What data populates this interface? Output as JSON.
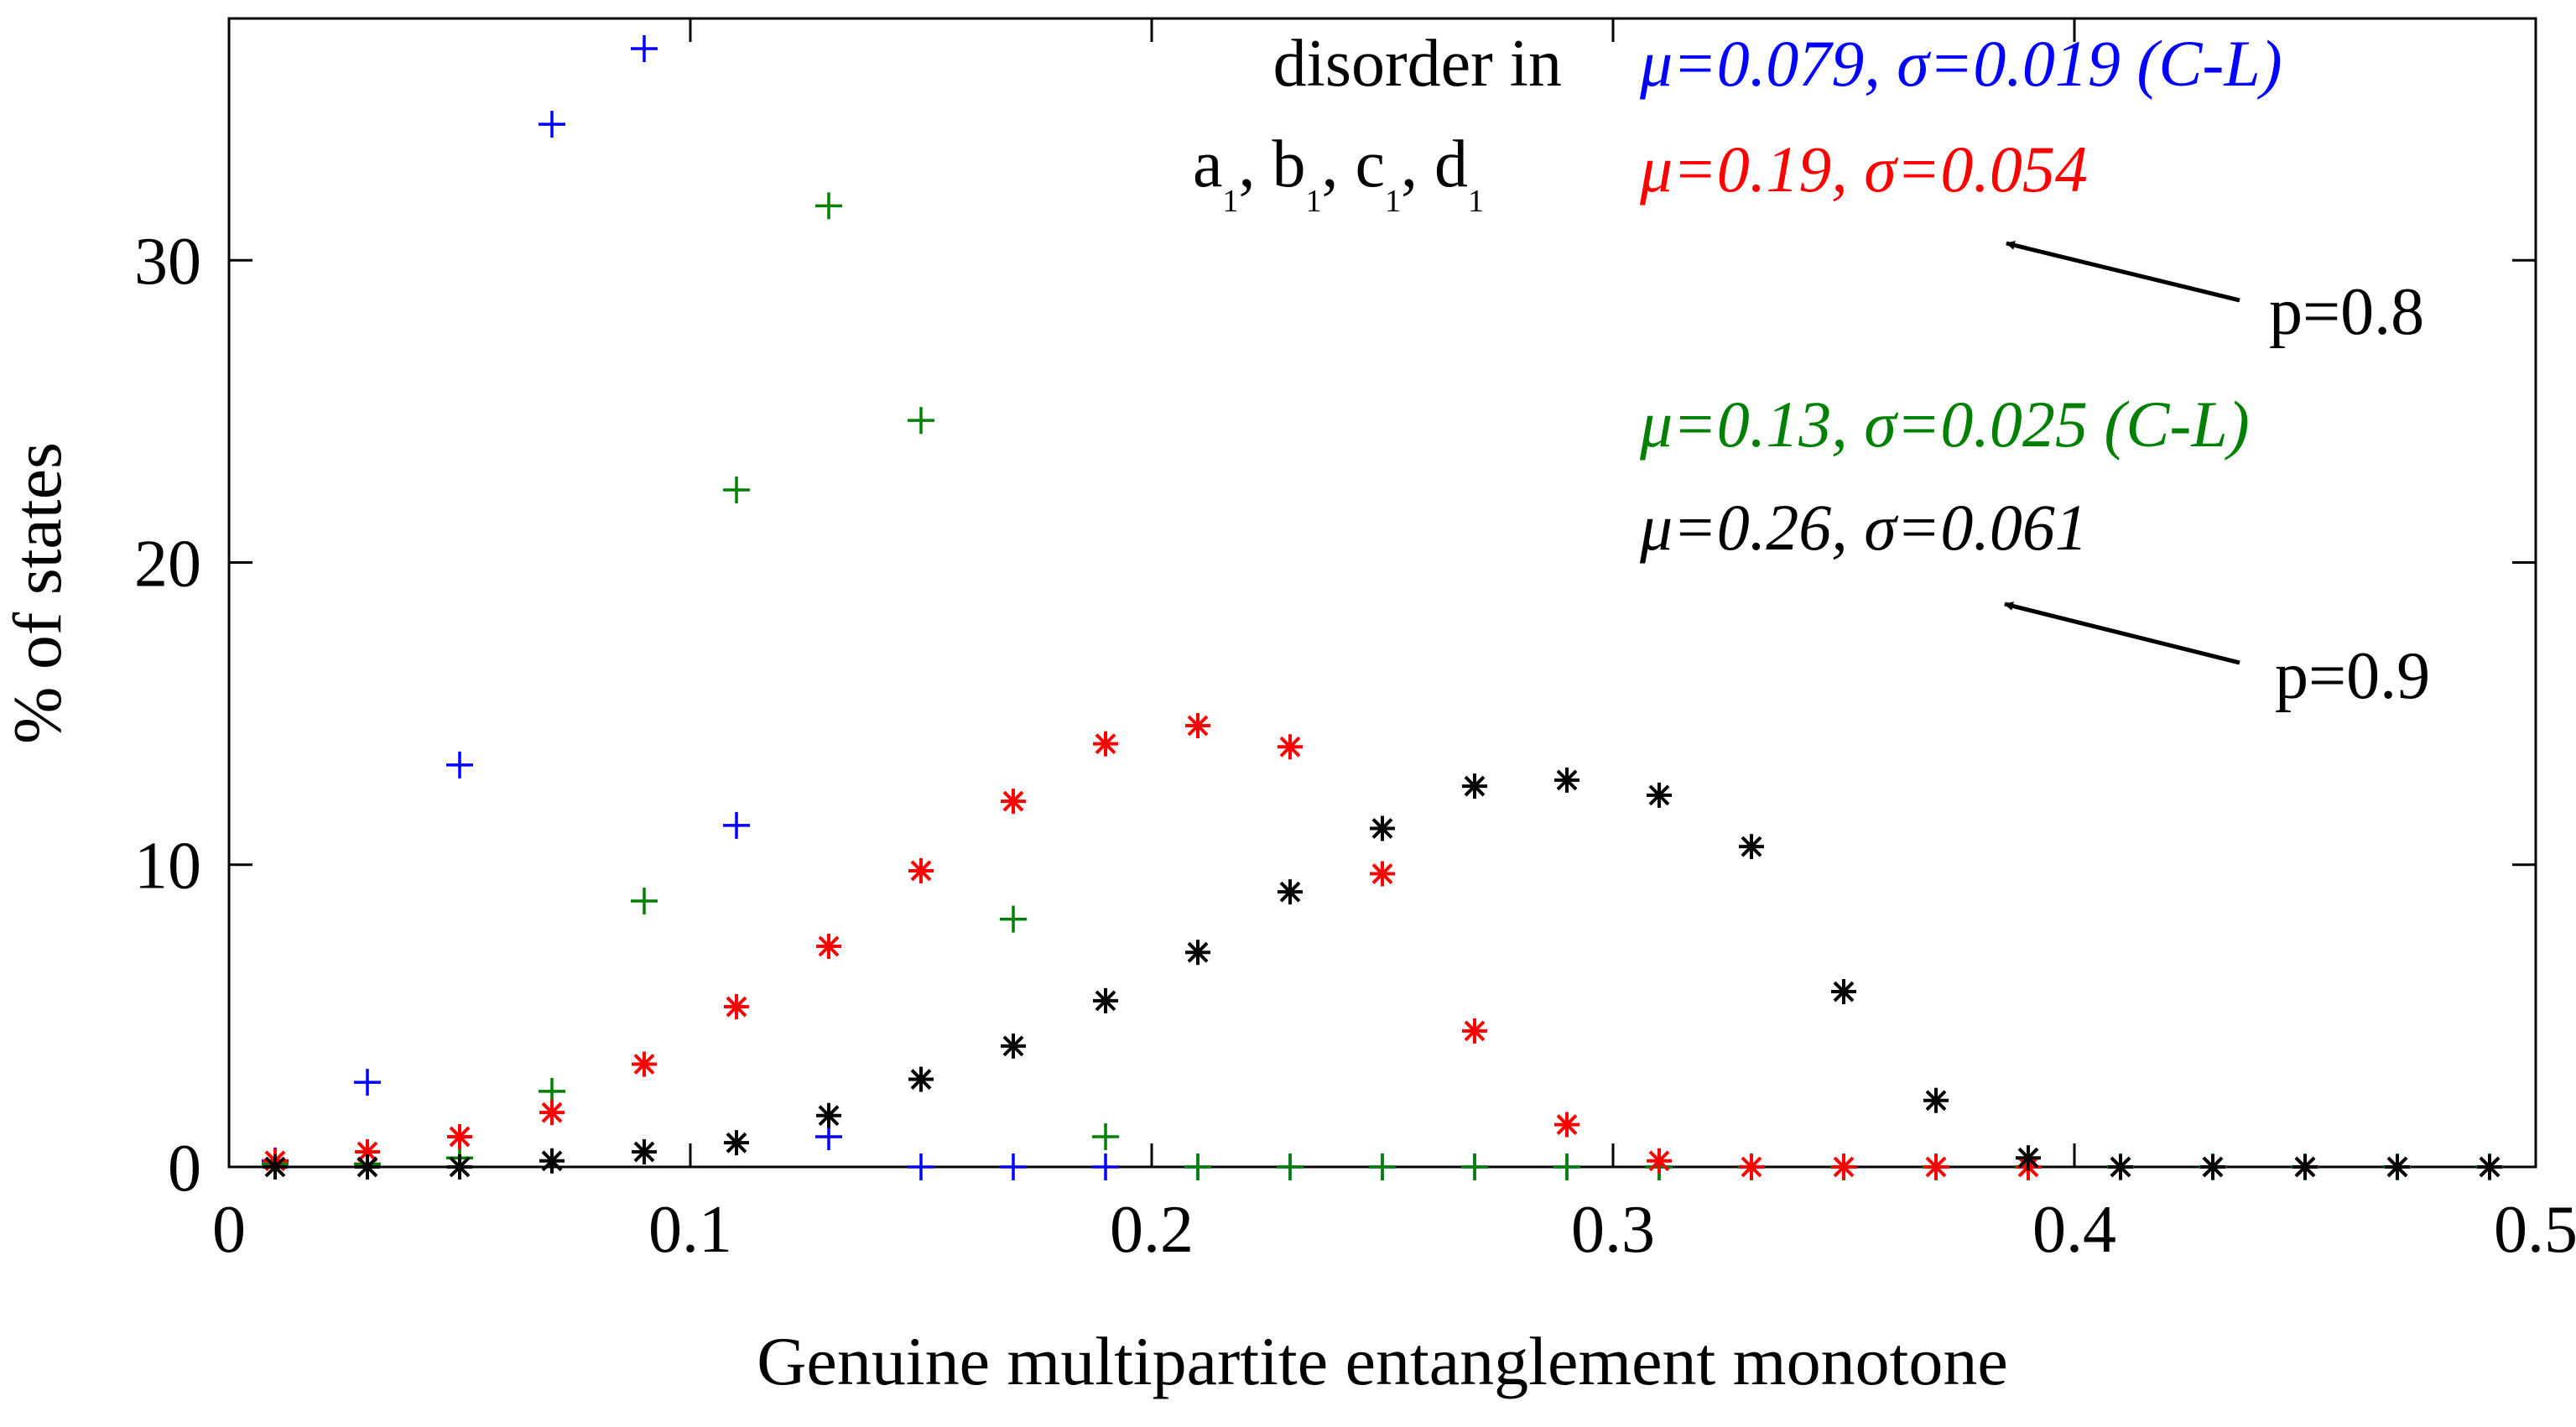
{
  "chart_data": {
    "type": "scatter",
    "title": "",
    "xlabel": "Genuine multipartite entanglement monotone",
    "ylabel": "% of states",
    "xlim": [
      0,
      0.5
    ],
    "ylim": [
      0,
      38
    ],
    "xticks": [
      0,
      0.1,
      0.2,
      0.3,
      0.4,
      0.5
    ],
    "xtick_labels": [
      "0",
      "0.1",
      "0.2",
      "0.3",
      "0.4",
      "0.5"
    ],
    "yticks": [
      0,
      10,
      20,
      30
    ],
    "ytick_labels": [
      "0",
      "10",
      "20",
      "30"
    ],
    "grid": false,
    "x": [
      0.01,
      0.03,
      0.05,
      0.07,
      0.09,
      0.11,
      0.13,
      0.15,
      0.17,
      0.19,
      0.21,
      0.23,
      0.25,
      0.27,
      0.29,
      0.31,
      0.33,
      0.35,
      0.37,
      0.39,
      0.41,
      0.43,
      0.45,
      0.47,
      0.49
    ],
    "series": [
      {
        "name": "blue plus (C-L, p=0.8)",
        "color": "#0000ff",
        "marker": "plus",
        "values": [
          0.2,
          2.8,
          13.3,
          34.5,
          37.0,
          11.3,
          1.0,
          0.0,
          0.0,
          0.0,
          0.0,
          0.0,
          0.0,
          0.0,
          0.0,
          0.0,
          0.0,
          0.0,
          0.0,
          0.0,
          0.0,
          0.0,
          0.0,
          0.0,
          0.0
        ]
      },
      {
        "name": "green plus (C-L, p=0.9)",
        "color": "#008000",
        "marker": "plus",
        "values": [
          0.1,
          0.1,
          0.3,
          2.5,
          8.8,
          22.4,
          31.8,
          24.7,
          8.2,
          1.0,
          0.0,
          0.0,
          0.0,
          0.0,
          0.0,
          0.0,
          0.0,
          0.0,
          0.0,
          0.0,
          0.0,
          0.0,
          0.0,
          0.0,
          0.0
        ]
      },
      {
        "name": "red asterisk (p=0.8)",
        "color": "#ff0000",
        "marker": "asterisk",
        "values": [
          0.2,
          0.5,
          1.0,
          1.8,
          3.4,
          5.3,
          7.3,
          9.8,
          12.1,
          14.0,
          14.6,
          13.9,
          9.7,
          4.5,
          1.4,
          0.2,
          0.0,
          0.0,
          0.0,
          0.0,
          0.0,
          0.0,
          0.0,
          0.0,
          0.0
        ]
      },
      {
        "name": "black asterisk (p=0.9)",
        "color": "#000000",
        "marker": "asterisk",
        "values": [
          0.0,
          0.0,
          0.0,
          0.2,
          0.5,
          0.8,
          1.7,
          2.9,
          4.0,
          5.5,
          7.1,
          9.1,
          11.2,
          12.6,
          12.8,
          12.3,
          10.6,
          5.8,
          2.2,
          0.3,
          0.0,
          0.0,
          0.0,
          0.0,
          0.0
        ]
      }
    ],
    "annotations": {
      "disorder_line1": "disorder in",
      "disorder_letters": [
        "a",
        "b",
        "c",
        "d"
      ],
      "disorder_subscript": "1",
      "disorder_sep": ",",
      "stat_blue": "μ=0.079, σ=0.019 (C-L)",
      "stat_red": "μ=0.19, σ=0.054",
      "stat_green": "μ=0.13, σ=0.025 (C-L)",
      "stat_black": "μ=0.26, σ=0.061",
      "arrow_label_1": "p=0.8",
      "arrow_label_2": "p=0.9",
      "color_blue": "#0000ff",
      "color_red": "#ff0000",
      "color_green": "#008000",
      "color_black": "#000000"
    }
  }
}
